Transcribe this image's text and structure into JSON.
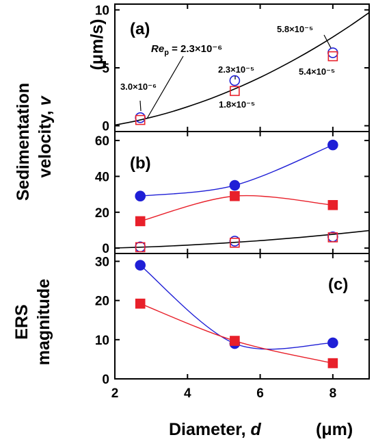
{
  "chart_data": [
    {
      "type": "scatter",
      "panel": "(a)",
      "xlim": [
        2,
        9
      ],
      "ylim": [
        -0.5,
        10.5
      ],
      "xticks": [
        2,
        4,
        6,
        8
      ],
      "yticks": [
        0,
        5,
        10
      ],
      "series": [
        {
          "marker": "circle-open",
          "color": "#1f1fd6",
          "x": [
            2.7,
            5.3,
            8.0
          ],
          "y": [
            0.7,
            3.9,
            6.3
          ]
        },
        {
          "marker": "square-open",
          "color": "#e8202a",
          "x": [
            2.7,
            5.3,
            8.0
          ],
          "y": [
            0.5,
            3.0,
            6.0
          ]
        },
        {
          "marker": "line",
          "color": "#000000",
          "x": [
            2.0,
            2.5,
            3.0,
            3.5,
            4.0,
            4.5,
            5.0,
            5.5,
            6.0,
            6.5,
            7.0,
            7.5,
            8.0,
            8.5,
            9.0
          ],
          "y": [
            0.06,
            0.36,
            0.73,
            1.15,
            1.64,
            2.18,
            2.79,
            3.45,
            4.17,
            4.96,
            5.8,
            6.7,
            7.66,
            8.68,
            9.77
          ]
        }
      ],
      "annotations": [
        {
          "text": "3.0×10⁻⁶",
          "x": 2.7,
          "y": 0.7
        },
        {
          "text": "2.3×10⁻⁵",
          "x": 5.3,
          "y": 3.9
        },
        {
          "text": "1.8×10⁻⁵",
          "x": 5.3,
          "y": 3.0
        },
        {
          "text": "5.8×10⁻⁵",
          "x": 8.0,
          "y": 6.3
        },
        {
          "text": "5.4×10⁻⁵",
          "x": 8.0,
          "y": 6.0
        }
      ],
      "rep_label": {
        "italic": "Re",
        "sub": "p",
        "rest": " = 2.3×10⁻⁶"
      }
    },
    {
      "type": "scatter",
      "panel": "(b)",
      "xlim": [
        2,
        9
      ],
      "ylim": [
        -3,
        65
      ],
      "xticks": [
        2,
        4,
        6,
        8
      ],
      "yticks": [
        0,
        20,
        40,
        60
      ],
      "series": [
        {
          "marker": "circle-filled",
          "color": "#1f1fd6",
          "x": [
            2.7,
            5.3,
            8.0
          ],
          "y": [
            29,
            35,
            57.5
          ]
        },
        {
          "marker": "square-filled",
          "color": "#e8202a",
          "x": [
            2.7,
            5.3,
            8.0
          ],
          "y": [
            15,
            29,
            24
          ]
        },
        {
          "marker": "circle-open",
          "color": "#1f1fd6",
          "x": [
            2.7,
            5.3,
            8.0
          ],
          "y": [
            0.7,
            3.9,
            6.3
          ]
        },
        {
          "marker": "square-open",
          "color": "#e8202a",
          "x": [
            2.7,
            5.3,
            8.0
          ],
          "y": [
            0.5,
            3.0,
            6.0
          ]
        },
        {
          "marker": "line",
          "color": "#000000",
          "x": [
            2.0,
            3.0,
            4.0,
            5.0,
            6.0,
            7.0,
            8.0,
            9.0
          ],
          "y": [
            0.06,
            0.73,
            1.64,
            2.79,
            4.17,
            5.8,
            7.66,
            9.77
          ]
        }
      ]
    },
    {
      "type": "scatter",
      "panel": "(c)",
      "xlim": [
        2,
        9
      ],
      "ylim": [
        0,
        32
      ],
      "xticks": [
        2,
        4,
        6,
        8
      ],
      "yticks": [
        0,
        10,
        20,
        30
      ],
      "series": [
        {
          "marker": "circle-filled",
          "color": "#1f1fd6",
          "x": [
            2.7,
            5.3,
            8.0
          ],
          "y": [
            29,
            9,
            9.2
          ]
        },
        {
          "marker": "square-filled",
          "color": "#e8202a",
          "x": [
            2.7,
            5.3,
            8.0
          ],
          "y": [
            19.2,
            9.7,
            4.0
          ]
        }
      ]
    }
  ],
  "labels": {
    "ylabel_top_line1": "Sedimentation",
    "ylabel_top_line2_prefix": "velocity, ",
    "ylabel_top_line2_var": "v",
    "ylabel_top_unit": "(μm/s)",
    "ylabel_bottom_line1": "ERS",
    "ylabel_bottom_line2": "magnitude",
    "xlabel_prefix": "Diameter, ",
    "xlabel_var": "d",
    "xlabel_unit": "(μm)"
  }
}
